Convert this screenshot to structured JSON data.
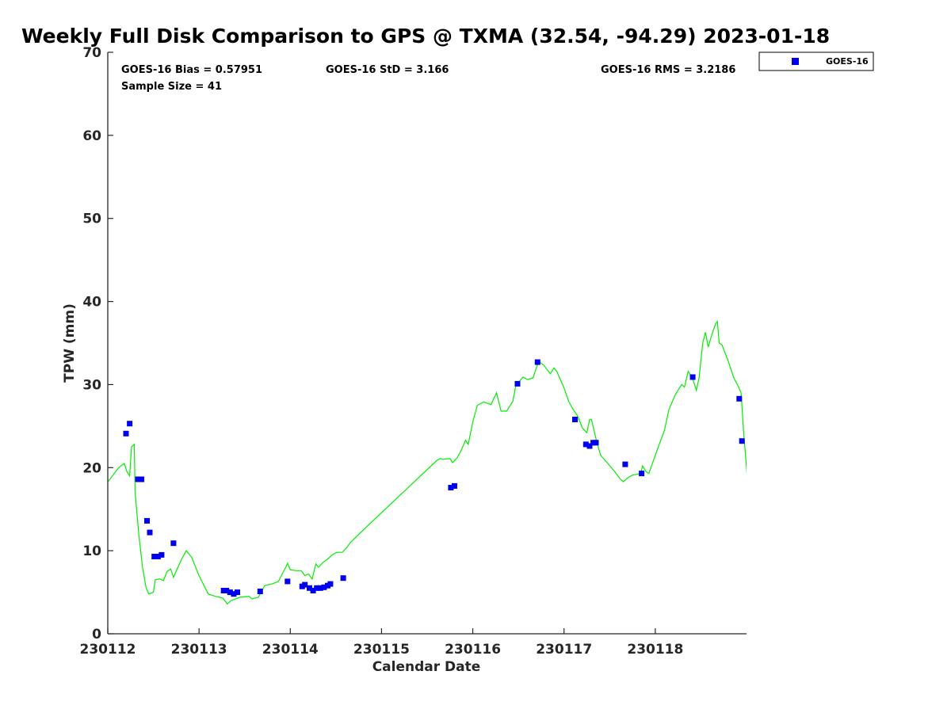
{
  "chart_data": {
    "type": "scatter",
    "title": "Weekly Full Disk Comparison to GPS @ TXMA (32.54, -94.29) 2023-01-18",
    "xlabel": "Calendar Date",
    "ylabel": "TPW (mm)",
    "xlim": [
      230112.0,
      230119.0
    ],
    "ylim": [
      0,
      70
    ],
    "x_ticks": [
      230112,
      230113,
      230114,
      230115,
      230116,
      230117,
      230118
    ],
    "x_tick_labels": [
      "230112",
      "230113",
      "230114",
      "230115",
      "230116",
      "230117",
      "230118"
    ],
    "y_ticks": [
      0,
      10,
      20,
      30,
      40,
      50,
      60,
      70
    ],
    "y_tick_labels": [
      "0",
      "10",
      "20",
      "30",
      "40",
      "50",
      "60",
      "70"
    ],
    "grid": false,
    "legend_position": "top-right, outside plot",
    "stats": {
      "bias": "GOES-16 Bias = 0.57951",
      "std": "GOES-16 StD = 3.166",
      "rms": "GOES-16 RMS = 3.2186",
      "sample": "Sample Size = 41"
    },
    "series": [
      {
        "name": "GOES-16",
        "kind": "scatter",
        "color": "#0000ee",
        "marker": "square",
        "points": [
          [
            230112.2,
            24.1
          ],
          [
            230112.24,
            25.3
          ],
          [
            230112.33,
            18.6
          ],
          [
            230112.37,
            18.6
          ],
          [
            230112.43,
            13.6
          ],
          [
            230112.46,
            12.2
          ],
          [
            230112.51,
            9.3
          ],
          [
            230112.55,
            9.3
          ],
          [
            230112.59,
            9.5
          ],
          [
            230112.72,
            10.9
          ],
          [
            230113.27,
            5.2
          ],
          [
            230113.3,
            5.2
          ],
          [
            230113.34,
            5.0
          ],
          [
            230113.38,
            4.8
          ],
          [
            230113.42,
            5.0
          ],
          [
            230113.67,
            5.1
          ],
          [
            230113.97,
            6.3
          ],
          [
            230114.13,
            5.7
          ],
          [
            230114.16,
            5.9
          ],
          [
            230114.21,
            5.5
          ],
          [
            230114.25,
            5.2
          ],
          [
            230114.29,
            5.5
          ],
          [
            230114.33,
            5.5
          ],
          [
            230114.37,
            5.6
          ],
          [
            230114.41,
            5.8
          ],
          [
            230114.44,
            6.0
          ],
          [
            230114.58,
            6.7
          ],
          [
            230115.76,
            17.6
          ],
          [
            230115.8,
            17.8
          ],
          [
            230116.49,
            30.1
          ],
          [
            230116.71,
            32.7
          ],
          [
            230117.12,
            25.8
          ],
          [
            230117.24,
            22.8
          ],
          [
            230117.28,
            22.6
          ],
          [
            230117.32,
            23.0
          ],
          [
            230117.35,
            23.0
          ],
          [
            230117.67,
            20.4
          ],
          [
            230117.85,
            19.3
          ],
          [
            230118.41,
            30.9
          ],
          [
            230118.92,
            28.3
          ],
          [
            230118.95,
            23.2
          ]
        ]
      },
      {
        "name": "",
        "kind": "line",
        "color": "#00ee00",
        "points": [
          [
            230111.98,
            18.0
          ],
          [
            230112.05,
            19.0
          ],
          [
            230112.12,
            20.0
          ],
          [
            230112.18,
            20.5
          ],
          [
            230112.21,
            19.5
          ],
          [
            230112.24,
            19.0
          ],
          [
            230112.26,
            22.5
          ],
          [
            230112.29,
            22.8
          ],
          [
            230112.3,
            17.0
          ],
          [
            230112.34,
            12.0
          ],
          [
            230112.38,
            8.0
          ],
          [
            230112.42,
            5.5
          ],
          [
            230112.45,
            4.8
          ],
          [
            230112.5,
            5.0
          ],
          [
            230112.52,
            6.5
          ],
          [
            230112.57,
            6.6
          ],
          [
            230112.61,
            6.4
          ],
          [
            230112.65,
            7.5
          ],
          [
            230112.69,
            7.8
          ],
          [
            230112.72,
            6.8
          ],
          [
            230112.76,
            7.8
          ],
          [
            230112.81,
            9.0
          ],
          [
            230112.86,
            10.0
          ],
          [
            230112.92,
            9.2
          ],
          [
            230113.0,
            7.0
          ],
          [
            230113.1,
            4.8
          ],
          [
            230113.18,
            4.5
          ],
          [
            230113.26,
            4.3
          ],
          [
            230113.31,
            3.6
          ],
          [
            230113.35,
            4.0
          ],
          [
            230113.45,
            4.4
          ],
          [
            230113.55,
            4.5
          ],
          [
            230113.58,
            4.2
          ],
          [
            230113.65,
            4.4
          ],
          [
            230113.72,
            5.8
          ],
          [
            230113.8,
            6.0
          ],
          [
            230113.87,
            6.3
          ],
          [
            230113.95,
            8.0
          ],
          [
            230113.97,
            8.5
          ],
          [
            230114.0,
            7.7
          ],
          [
            230114.07,
            7.6
          ],
          [
            230114.12,
            7.6
          ],
          [
            230114.16,
            7.0
          ],
          [
            230114.2,
            7.2
          ],
          [
            230114.24,
            6.6
          ],
          [
            230114.28,
            8.4
          ],
          [
            230114.31,
            8.0
          ],
          [
            230114.36,
            8.6
          ],
          [
            230114.41,
            9.0
          ],
          [
            230114.46,
            9.5
          ],
          [
            230114.51,
            9.8
          ],
          [
            230114.57,
            9.8
          ],
          [
            230114.62,
            10.4
          ],
          [
            230114.66,
            11.0
          ],
          [
            230114.8,
            12.5
          ],
          [
            230115.6,
            20.8
          ],
          [
            230115.64,
            21.1
          ],
          [
            230115.67,
            21.0
          ],
          [
            230115.75,
            21.1
          ],
          [
            230115.78,
            20.6
          ],
          [
            230115.83,
            21.2
          ],
          [
            230115.87,
            22.0
          ],
          [
            230115.92,
            23.3
          ],
          [
            230115.95,
            22.8
          ],
          [
            230116.0,
            25.5
          ],
          [
            230116.05,
            27.5
          ],
          [
            230116.12,
            27.9
          ],
          [
            230116.2,
            27.6
          ],
          [
            230116.26,
            29.0
          ],
          [
            230116.31,
            26.8
          ],
          [
            230116.37,
            26.8
          ],
          [
            230116.44,
            28.0
          ],
          [
            230116.47,
            29.8
          ],
          [
            230116.52,
            30.5
          ],
          [
            230116.55,
            30.9
          ],
          [
            230116.6,
            30.6
          ],
          [
            230116.66,
            30.8
          ],
          [
            230116.72,
            32.8
          ],
          [
            230116.78,
            32.3
          ],
          [
            230116.85,
            31.3
          ],
          [
            230116.89,
            32.0
          ],
          [
            230116.92,
            31.6
          ],
          [
            230116.96,
            30.6
          ],
          [
            230117.0,
            29.6
          ],
          [
            230117.05,
            28.0
          ],
          [
            230117.1,
            27.0
          ],
          [
            230117.15,
            26.2
          ],
          [
            230117.2,
            24.8
          ],
          [
            230117.25,
            24.2
          ],
          [
            230117.28,
            25.8
          ],
          [
            230117.3,
            25.8
          ],
          [
            230117.35,
            23.5
          ],
          [
            230117.4,
            21.5
          ],
          [
            230117.48,
            20.5
          ],
          [
            230117.55,
            19.6
          ],
          [
            230117.61,
            18.7
          ],
          [
            230117.65,
            18.3
          ],
          [
            230117.7,
            18.8
          ],
          [
            230117.75,
            19.1
          ],
          [
            230117.8,
            19.2
          ],
          [
            230117.84,
            19.3
          ],
          [
            230117.86,
            20.2
          ],
          [
            230117.9,
            19.5
          ],
          [
            230117.93,
            19.3
          ],
          [
            230118.0,
            21.5
          ],
          [
            230118.1,
            24.5
          ],
          [
            230118.15,
            27.0
          ],
          [
            230118.2,
            28.3
          ],
          [
            230118.22,
            28.8
          ],
          [
            230118.26,
            29.5
          ],
          [
            230118.29,
            30.0
          ],
          [
            230118.32,
            29.7
          ],
          [
            230118.36,
            31.6
          ],
          [
            230118.41,
            30.7
          ],
          [
            230118.45,
            29.3
          ],
          [
            230118.48,
            30.8
          ],
          [
            230118.52,
            35.0
          ],
          [
            230118.55,
            36.3
          ],
          [
            230118.58,
            34.5
          ],
          [
            230118.62,
            36.0
          ],
          [
            230118.66,
            37.3
          ],
          [
            230118.68,
            37.6
          ],
          [
            230118.7,
            35.0
          ],
          [
            230118.73,
            34.8
          ],
          [
            230118.8,
            32.8
          ],
          [
            230118.86,
            30.8
          ],
          [
            230118.9,
            30.0
          ],
          [
            230118.94,
            29.0
          ],
          [
            230118.97,
            24.0
          ],
          [
            230119.0,
            20.0
          ],
          [
            230119.02,
            17.0
          ]
        ]
      }
    ]
  }
}
